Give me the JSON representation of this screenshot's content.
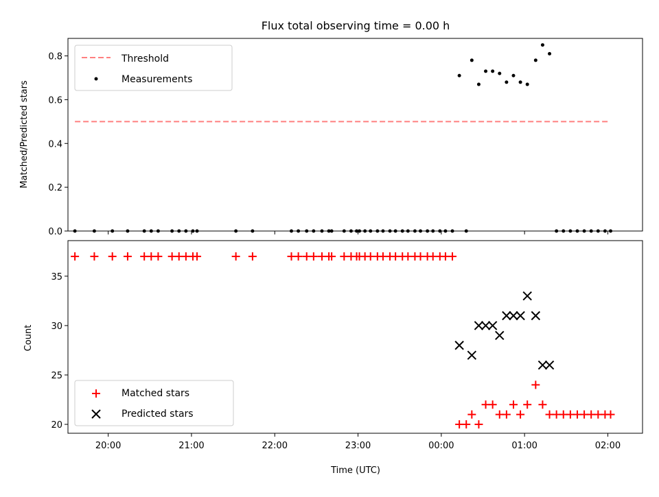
{
  "chart_data": [
    {
      "type": "scatter",
      "title": "Flux total observing time = 0.00 h",
      "ylabel": "Matched/Predicted stars",
      "xlim": [
        "19:31",
        "02:25"
      ],
      "ylim": [
        0,
        0.88
      ],
      "yticks": [
        "0.0",
        "0.2",
        "0.4",
        "0.6",
        "0.8"
      ],
      "legend_position": "top-left",
      "threshold": {
        "name": "Threshold",
        "value": 0.5,
        "x_range": [
          "19:36",
          "02:00"
        ],
        "color": "#ff7f7f",
        "style": "dashed"
      },
      "series": [
        {
          "name": "Measurements",
          "marker": "dot",
          "color": "#000000",
          "points": [
            [
              "19:36",
              0
            ],
            [
              "19:50",
              0
            ],
            [
              "20:03",
              0
            ],
            [
              "20:14",
              0
            ],
            [
              "20:26",
              0
            ],
            [
              "20:31",
              0
            ],
            [
              "20:36",
              0
            ],
            [
              "20:46",
              0
            ],
            [
              "20:51",
              0
            ],
            [
              "20:56",
              0
            ],
            [
              "21:01",
              0
            ],
            [
              "21:04",
              0
            ],
            [
              "21:32",
              0
            ],
            [
              "21:44",
              0
            ],
            [
              "22:12",
              0
            ],
            [
              "22:17",
              0
            ],
            [
              "22:23",
              0
            ],
            [
              "22:28",
              0
            ],
            [
              "22:34",
              0
            ],
            [
              "22:39",
              0
            ],
            [
              "22:41",
              0
            ],
            [
              "22:50",
              0
            ],
            [
              "22:55",
              0
            ],
            [
              "22:59",
              0
            ],
            [
              "23:01",
              0
            ],
            [
              "23:05",
              0
            ],
            [
              "23:09",
              0
            ],
            [
              "23:14",
              0
            ],
            [
              "23:18",
              0
            ],
            [
              "23:23",
              0
            ],
            [
              "23:27",
              0
            ],
            [
              "23:32",
              0
            ],
            [
              "23:36",
              0
            ],
            [
              "23:41",
              0
            ],
            [
              "23:45",
              0
            ],
            [
              "23:50",
              0
            ],
            [
              "23:54",
              0
            ],
            [
              "23:59",
              0
            ],
            [
              "00:03",
              0
            ],
            [
              "00:08",
              0
            ],
            [
              "00:13",
              0.71
            ],
            [
              "00:18",
              0
            ],
            [
              "00:22",
              0.78
            ],
            [
              "00:27",
              0.67
            ],
            [
              "00:32",
              0.73
            ],
            [
              "00:37",
              0.73
            ],
            [
              "00:42",
              0.72
            ],
            [
              "00:47",
              0.68
            ],
            [
              "00:52",
              0.71
            ],
            [
              "00:57",
              0.68
            ],
            [
              "01:02",
              0.67
            ],
            [
              "01:08",
              0.78
            ],
            [
              "01:13",
              0.85
            ],
            [
              "01:18",
              0.81
            ],
            [
              "01:23",
              0
            ],
            [
              "01:28",
              0
            ],
            [
              "01:33",
              0
            ],
            [
              "01:38",
              0
            ],
            [
              "01:43",
              0
            ],
            [
              "01:48",
              0
            ],
            [
              "01:53",
              0
            ],
            [
              "01:58",
              0
            ],
            [
              "02:02",
              0
            ]
          ]
        }
      ]
    },
    {
      "type": "scatter",
      "xlabel": "Time (UTC)",
      "ylabel": "Count",
      "xlim": [
        "19:31",
        "02:25"
      ],
      "ylim": [
        19.1,
        38.6
      ],
      "yticks": [
        "20",
        "25",
        "30",
        "35"
      ],
      "xticks": [
        "20:00",
        "21:00",
        "22:00",
        "23:00",
        "00:00",
        "01:00",
        "02:00"
      ],
      "legend_position": "bottom-left",
      "series": [
        {
          "name": "Matched stars",
          "marker": "plus",
          "color": "#ff0000",
          "points": [
            [
              "19:36",
              37
            ],
            [
              "19:50",
              37
            ],
            [
              "20:03",
              37
            ],
            [
              "20:14",
              37
            ],
            [
              "20:26",
              37
            ],
            [
              "20:31",
              37
            ],
            [
              "20:36",
              37
            ],
            [
              "20:46",
              37
            ],
            [
              "20:51",
              37
            ],
            [
              "20:56",
              37
            ],
            [
              "21:01",
              37
            ],
            [
              "21:04",
              37
            ],
            [
              "21:32",
              37
            ],
            [
              "21:44",
              37
            ],
            [
              "22:12",
              37
            ],
            [
              "22:17",
              37
            ],
            [
              "22:23",
              37
            ],
            [
              "22:28",
              37
            ],
            [
              "22:34",
              37
            ],
            [
              "22:39",
              37
            ],
            [
              "22:41",
              37
            ],
            [
              "22:50",
              37
            ],
            [
              "22:55",
              37
            ],
            [
              "22:59",
              37
            ],
            [
              "23:01",
              37
            ],
            [
              "23:05",
              37
            ],
            [
              "23:09",
              37
            ],
            [
              "23:14",
              37
            ],
            [
              "23:18",
              37
            ],
            [
              "23:23",
              37
            ],
            [
              "23:27",
              37
            ],
            [
              "23:32",
              37
            ],
            [
              "23:36",
              37
            ],
            [
              "23:41",
              37
            ],
            [
              "23:45",
              37
            ],
            [
              "23:50",
              37
            ],
            [
              "23:54",
              37
            ],
            [
              "23:59",
              37
            ],
            [
              "00:03",
              37
            ],
            [
              "00:08",
              37
            ],
            [
              "00:13",
              20
            ],
            [
              "00:18",
              20
            ],
            [
              "00:22",
              21
            ],
            [
              "00:27",
              20
            ],
            [
              "00:32",
              22
            ],
            [
              "00:37",
              22
            ],
            [
              "00:42",
              21
            ],
            [
              "00:47",
              21
            ],
            [
              "00:52",
              22
            ],
            [
              "00:57",
              21
            ],
            [
              "01:02",
              22
            ],
            [
              "01:08",
              24
            ],
            [
              "01:13",
              22
            ],
            [
              "01:18",
              21
            ],
            [
              "01:23",
              21
            ],
            [
              "01:28",
              21
            ],
            [
              "01:33",
              21
            ],
            [
              "01:38",
              21
            ],
            [
              "01:43",
              21
            ],
            [
              "01:48",
              21
            ],
            [
              "01:53",
              21
            ],
            [
              "01:58",
              21
            ],
            [
              "02:02",
              21
            ]
          ]
        },
        {
          "name": "Predicted stars",
          "marker": "x",
          "color": "#000000",
          "points": [
            [
              "00:13",
              28
            ],
            [
              "00:22",
              27
            ],
            [
              "00:27",
              30
            ],
            [
              "00:32",
              30
            ],
            [
              "00:37",
              30
            ],
            [
              "00:42",
              29
            ],
            [
              "00:47",
              31
            ],
            [
              "00:52",
              31
            ],
            [
              "00:57",
              31
            ],
            [
              "01:02",
              33
            ],
            [
              "01:08",
              31
            ],
            [
              "01:13",
              26
            ],
            [
              "01:18",
              26
            ]
          ]
        }
      ]
    }
  ]
}
